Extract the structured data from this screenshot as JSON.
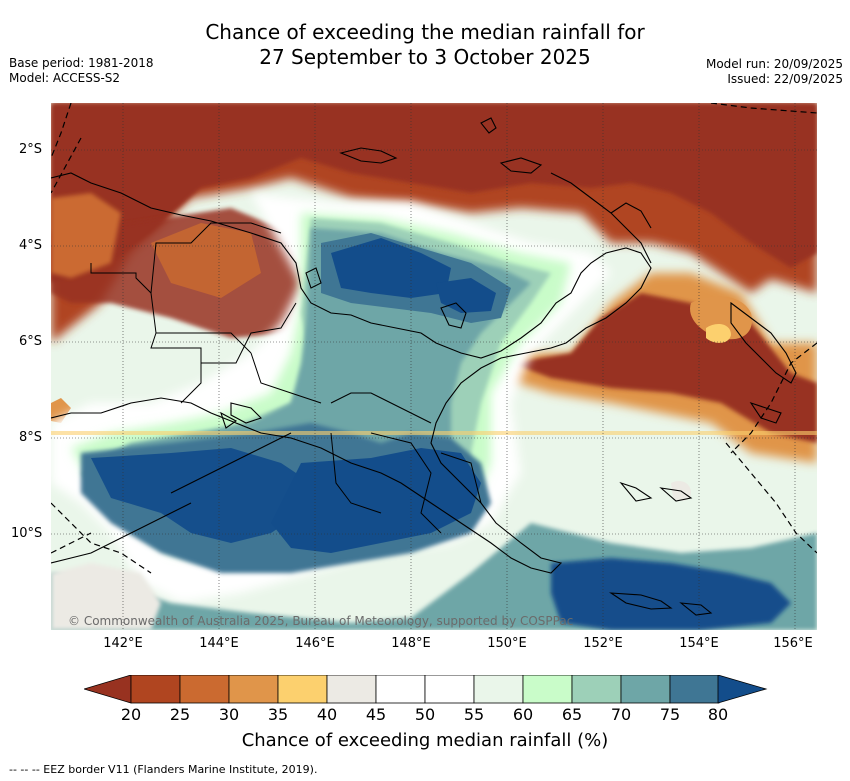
{
  "title": {
    "line1": "Chance of exceeding the median rainfall for",
    "line2": "27 September to 3 October 2025"
  },
  "meta": {
    "base_period": "Base period: 1981-2018",
    "model": "Model: ACCESS-S2",
    "model_run": "Model run: 20/09/2025",
    "issued": "Issued: 22/09/2025"
  },
  "map": {
    "latitude_labels": [
      "2°S",
      "4°S",
      "6°S",
      "8°S",
      "10°S"
    ],
    "longitude_labels": [
      "142°E",
      "144°E",
      "146°E",
      "148°E",
      "150°E",
      "152°E",
      "154°E",
      "156°E"
    ],
    "copyright": "© Commonwealth of Australia 2025, Bureau of Meteorology, supported by COSPPac"
  },
  "colorbar": {
    "tick_labels": [
      "20",
      "25",
      "30",
      "35",
      "40",
      "45",
      "50",
      "55",
      "60",
      "65",
      "70",
      "75",
      "80"
    ],
    "colors": [
      "#b04520",
      "#cb6a30",
      "#e0954a",
      "#fcd06e",
      "#eceae4",
      "#ffffff",
      "#ffffff",
      "#eaf6ea",
      "#c9fcc9",
      "#9dd0b8",
      "#6ea6a7",
      "#3f7694"
    ],
    "low_arrow_color": "#983220",
    "high_arrow_color": "#134d8b",
    "title": "Chance of exceeding median rainfall (%)"
  },
  "footnote": "-- -- -- EEZ border V11 (Flanders Marine Institute, 2019)."
}
